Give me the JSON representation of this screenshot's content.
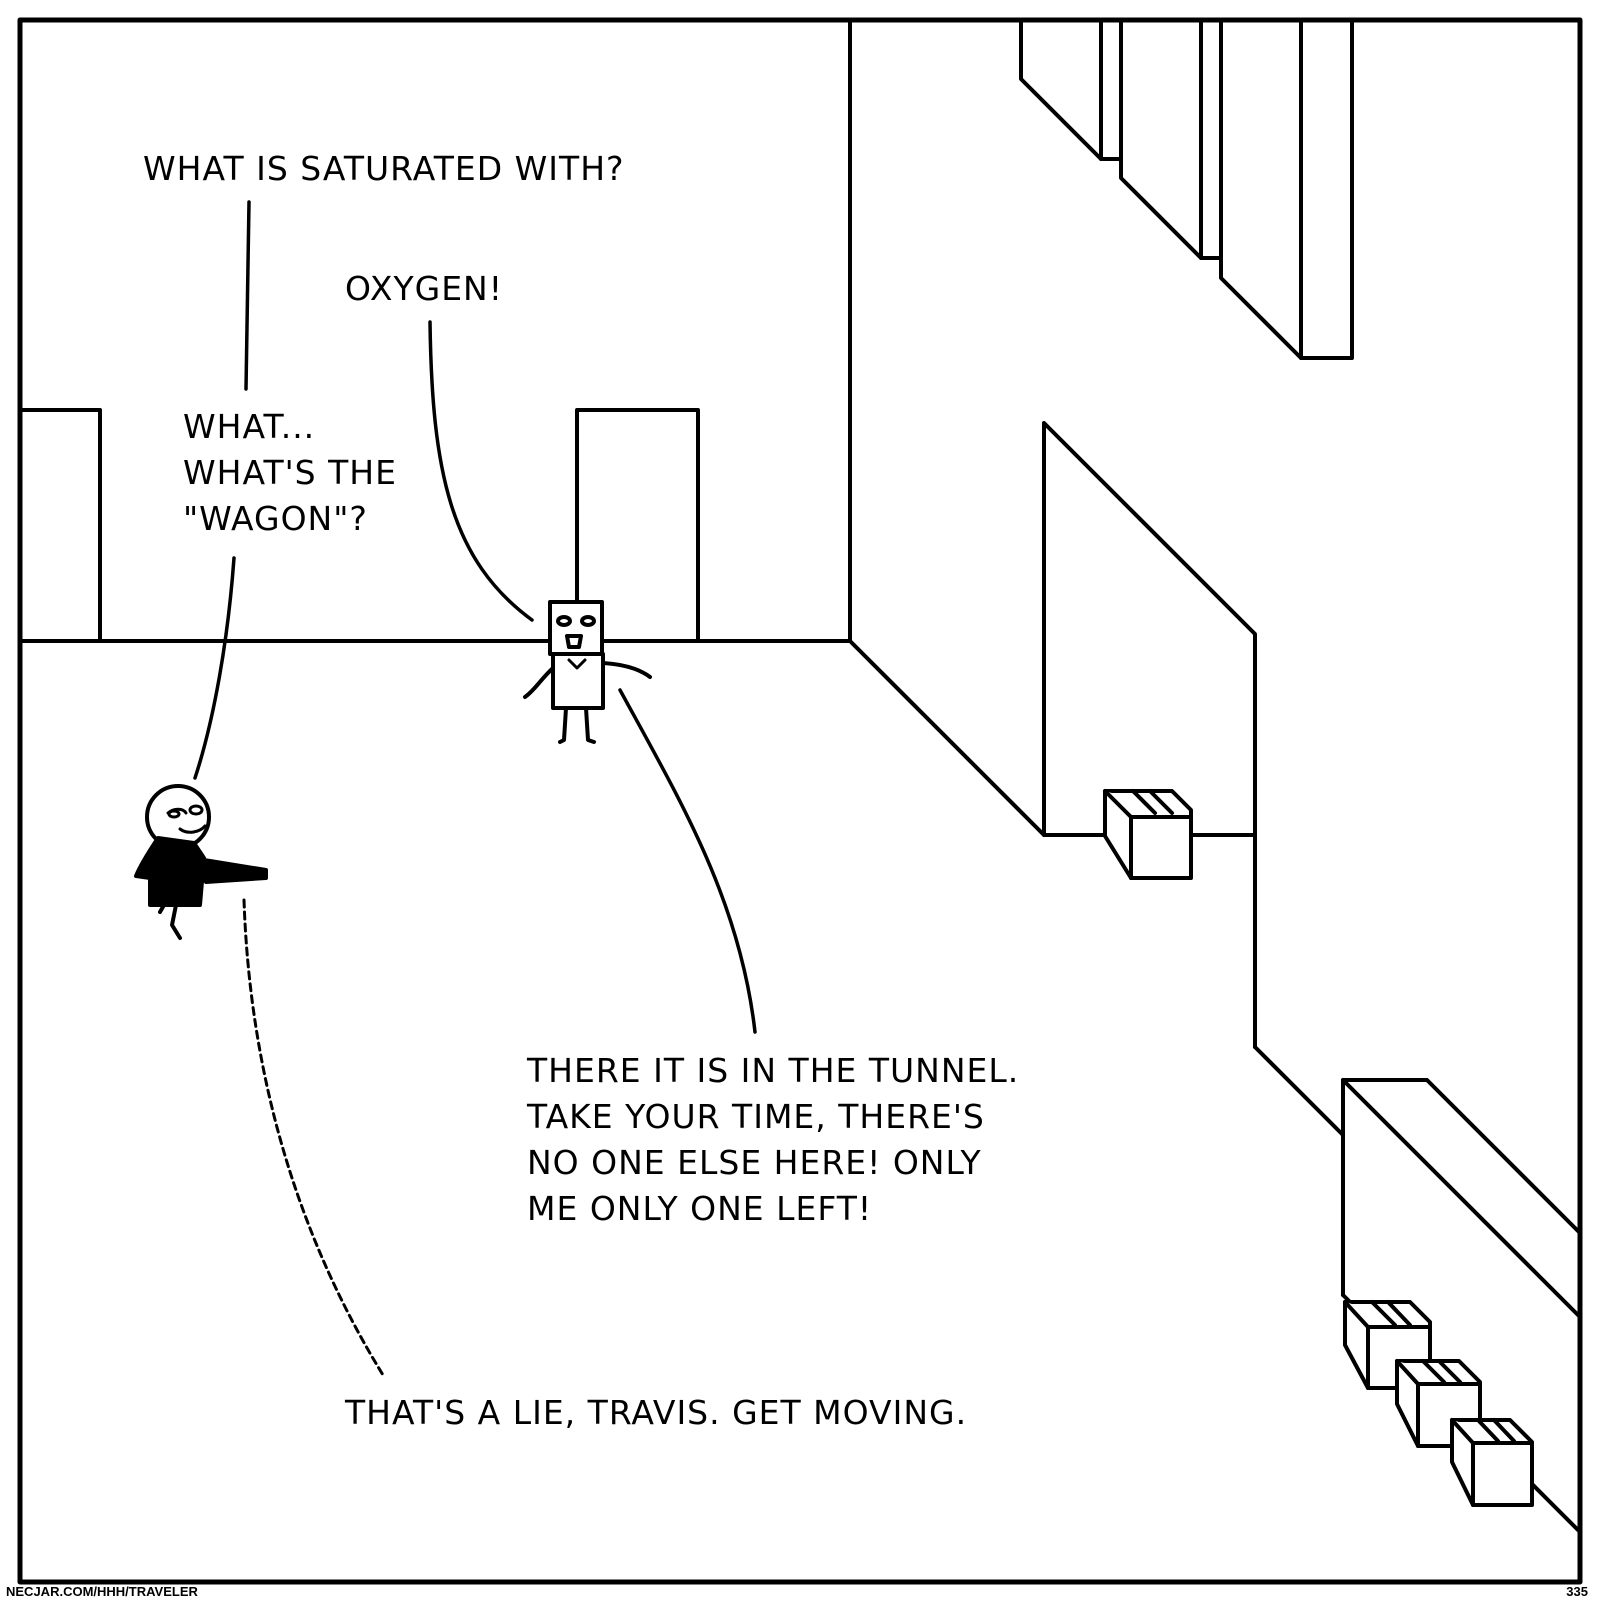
{
  "comic": {
    "dialogue": {
      "question": "WHAT IS SATURATED WITH?",
      "answer": "OXYGEN!",
      "wagon_lines": [
        "WHAT...",
        "WHAT'S THE",
        "\"WAGON\"?"
      ],
      "tunnel_lines": [
        "THERE IT IS IN THE TUNNEL.",
        "TAKE YOUR TIME, THERE'S",
        "NO ONE ELSE HERE! ONLY",
        "ME ONLY ONE LEFT!"
      ],
      "lie": "THAT'S A LIE, TRAVIS. GET MOVING."
    },
    "footer": {
      "site": "NECJAR.COM/HHH/TRAVELER",
      "page_number": "335"
    }
  }
}
